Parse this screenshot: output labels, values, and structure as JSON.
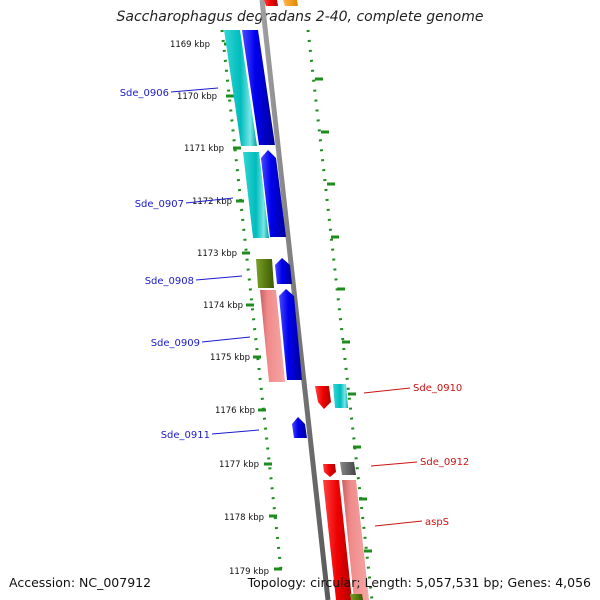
{
  "header": {
    "title": "Saccharophagus degradans 2-40, complete genome"
  },
  "footer": {
    "accession": "Accession: NC_007912",
    "topology": "Topology: circular; Length: 5,057,531 bp; Genes: 4,056"
  },
  "ticks": [
    "1169 kbp",
    "1170 kbp",
    "1171 kbp",
    "1172 kbp",
    "1173 kbp",
    "1174 kbp",
    "1175 kbp",
    "1176 kbp",
    "1177 kbp",
    "1178 kbp",
    "1179 kbp"
  ],
  "genes": [
    {
      "name": "Sde_0906",
      "color": "#1a1acc"
    },
    {
      "name": "Sde_0907",
      "color": "#1a1acc"
    },
    {
      "name": "Sde_0908",
      "color": "#1a1acc"
    },
    {
      "name": "Sde_0909",
      "color": "#1a1acc"
    },
    {
      "name": "Sde_0911",
      "color": "#1a1acc"
    },
    {
      "name": "Sde_0910",
      "color": "#cc1111"
    },
    {
      "name": "Sde_0912",
      "color": "#cc1111"
    },
    {
      "name": "aspS",
      "color": "#cc1111"
    }
  ],
  "colors": {
    "backbone": "#808080",
    "dotted_track": "#1e8c1e",
    "blue_gene": "#0000ee",
    "cyan_gene": "#00bcbc",
    "green_gene": "#5a7d12",
    "pink_gene": "#f08a8a",
    "red_gene": "#ee0000",
    "gray_gene": "#666666",
    "orange_gene": "#f39a00"
  }
}
